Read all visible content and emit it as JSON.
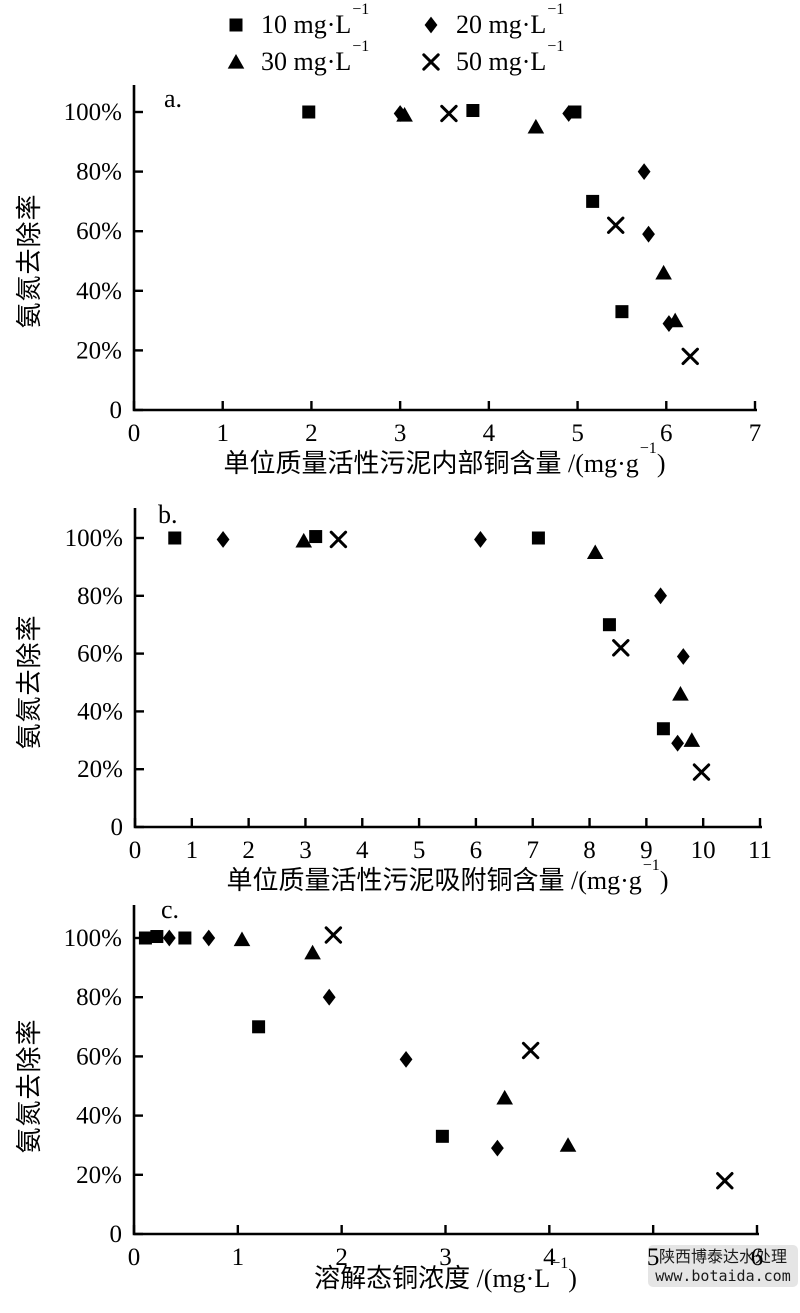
{
  "figure": {
    "watermark": {
      "line1": "陕西博泰达水处理",
      "line2": "www.botaida.com"
    },
    "colors": {
      "background": "#ffffff",
      "axis": "#000000",
      "marker": "#000000",
      "watermark_bg": "#e4e4e4",
      "watermark_text": "#1a1a1a"
    }
  },
  "legend": {
    "items": [
      {
        "marker": "square",
        "label": "10 mg·L",
        "exp": "−1"
      },
      {
        "marker": "diamond",
        "label": "20 mg·L",
        "exp": "−1"
      },
      {
        "marker": "triangle",
        "label": "30 mg·L",
        "exp": "−1"
      },
      {
        "marker": "x",
        "label": "50 mg·L",
        "exp": "−1"
      }
    ]
  },
  "chart_data": [
    {
      "id": "a",
      "panel_label": "a.",
      "type": "scatter",
      "ylabel": "氨氮去除率",
      "xlabel": {
        "pre": "单位质量活性污泥内部铜含量 /(mg·g",
        "sup": "−1",
        "post": ")"
      },
      "xlim": [
        0,
        7
      ],
      "xticks": [
        "0",
        "1",
        "2",
        "3",
        "4",
        "5",
        "6",
        "7"
      ],
      "ylim": [
        0,
        100
      ],
      "yticks": [
        {
          "value": 0,
          "label": "0"
        },
        {
          "value": 20,
          "label": "20%"
        },
        {
          "value": 40,
          "label": "40%"
        },
        {
          "value": 60,
          "label": "60%"
        },
        {
          "value": 80,
          "label": "80%"
        },
        {
          "value": 100,
          "label": "100%"
        }
      ],
      "grid": false,
      "legend_position": "top",
      "series": [
        {
          "name": "10 mg·L−1",
          "marker": "square",
          "points": [
            [
              1.97,
              100
            ],
            [
              3.82,
              100.5
            ],
            [
              4.97,
              100
            ],
            [
              5.17,
              70
            ],
            [
              5.5,
              33
            ]
          ]
        },
        {
          "name": "20 mg·L−1",
          "marker": "diamond",
          "points": [
            [
              3.0,
              99.5
            ],
            [
              4.9,
              99.5
            ],
            [
              5.75,
              80
            ],
            [
              5.8,
              59
            ],
            [
              6.03,
              29
            ]
          ]
        },
        {
          "name": "30 mg·L−1",
          "marker": "triangle",
          "points": [
            [
              3.05,
              99
            ],
            [
              4.53,
              95
            ],
            [
              5.97,
              46
            ],
            [
              6.1,
              30
            ]
          ]
        },
        {
          "name": "50 mg·L−1",
          "marker": "x",
          "points": [
            [
              3.55,
              99.5
            ],
            [
              5.43,
              62
            ],
            [
              6.27,
              18
            ]
          ]
        }
      ]
    },
    {
      "id": "b",
      "panel_label": "b.",
      "type": "scatter",
      "ylabel": "氨氮去除率",
      "xlabel": {
        "pre": "单位质量活性污泥吸附铜含量 /(mg·g",
        "sup": "−1",
        "post": ")"
      },
      "xlim": [
        0,
        11
      ],
      "xticks": [
        "0",
        "1",
        "2",
        "3",
        "4",
        "5",
        "6",
        "7",
        "8",
        "9",
        "10",
        "11"
      ],
      "ylim": [
        0,
        100
      ],
      "yticks": [
        {
          "value": 0,
          "label": "0"
        },
        {
          "value": 20,
          "label": "20%"
        },
        {
          "value": 40,
          "label": "40%"
        },
        {
          "value": 60,
          "label": "60%"
        },
        {
          "value": 80,
          "label": "80%"
        },
        {
          "value": 100,
          "label": "100%"
        }
      ],
      "grid": false,
      "legend_position": "top",
      "series": [
        {
          "name": "10 mg·L−1",
          "marker": "square",
          "points": [
            [
              0.7,
              100
            ],
            [
              3.18,
              100.5
            ],
            [
              7.1,
              100
            ],
            [
              8.35,
              70
            ],
            [
              9.3,
              34
            ]
          ]
        },
        {
          "name": "20 mg·L−1",
          "marker": "diamond",
          "points": [
            [
              1.55,
              99.5
            ],
            [
              6.08,
              99.5
            ],
            [
              9.25,
              80
            ],
            [
              9.65,
              59
            ],
            [
              9.55,
              29
            ]
          ]
        },
        {
          "name": "30 mg·L−1",
          "marker": "triangle",
          "points": [
            [
              2.97,
              99
            ],
            [
              8.1,
              95
            ],
            [
              9.6,
              46
            ],
            [
              9.8,
              30
            ]
          ]
        },
        {
          "name": "50 mg·L−1",
          "marker": "x",
          "points": [
            [
              3.58,
              99.5
            ],
            [
              8.55,
              62
            ],
            [
              9.97,
              19
            ]
          ]
        }
      ]
    },
    {
      "id": "c",
      "panel_label": "c.",
      "type": "scatter",
      "ylabel": "氨氮去除率",
      "xlabel": {
        "pre": "溶解态铜浓度 /(mg·L",
        "sup": "−1",
        "post": ")"
      },
      "xlim": [
        0,
        6
      ],
      "xticks": [
        "0",
        "1",
        "2",
        "3",
        "4",
        "5",
        "6"
      ],
      "ylim": [
        0,
        100
      ],
      "yticks": [
        {
          "value": 0,
          "label": "0"
        },
        {
          "value": 20,
          "label": "20%"
        },
        {
          "value": 40,
          "label": "40%"
        },
        {
          "value": 60,
          "label": "60%"
        },
        {
          "value": 80,
          "label": "80%"
        },
        {
          "value": 100,
          "label": "100%"
        }
      ],
      "grid": false,
      "legend_position": "top",
      "series": [
        {
          "name": "10 mg·L−1",
          "marker": "square",
          "points": [
            [
              0.11,
              100
            ],
            [
              0.22,
              100.5
            ],
            [
              0.49,
              100
            ],
            [
              1.2,
              70
            ],
            [
              2.97,
              33
            ]
          ]
        },
        {
          "name": "20 mg·L−1",
          "marker": "diamond",
          "points": [
            [
              0.34,
              100
            ],
            [
              0.72,
              100
            ],
            [
              1.88,
              80
            ],
            [
              2.62,
              59
            ],
            [
              3.5,
              29
            ]
          ]
        },
        {
          "name": "30 mg·L−1",
          "marker": "triangle",
          "points": [
            [
              1.04,
              99.5
            ],
            [
              1.72,
              95
            ],
            [
              3.57,
              46
            ],
            [
              4.18,
              30
            ]
          ]
        },
        {
          "name": "50 mg·L−1",
          "marker": "x",
          "points": [
            [
              1.92,
              101
            ],
            [
              3.82,
              62
            ],
            [
              5.69,
              18
            ]
          ]
        }
      ]
    }
  ]
}
